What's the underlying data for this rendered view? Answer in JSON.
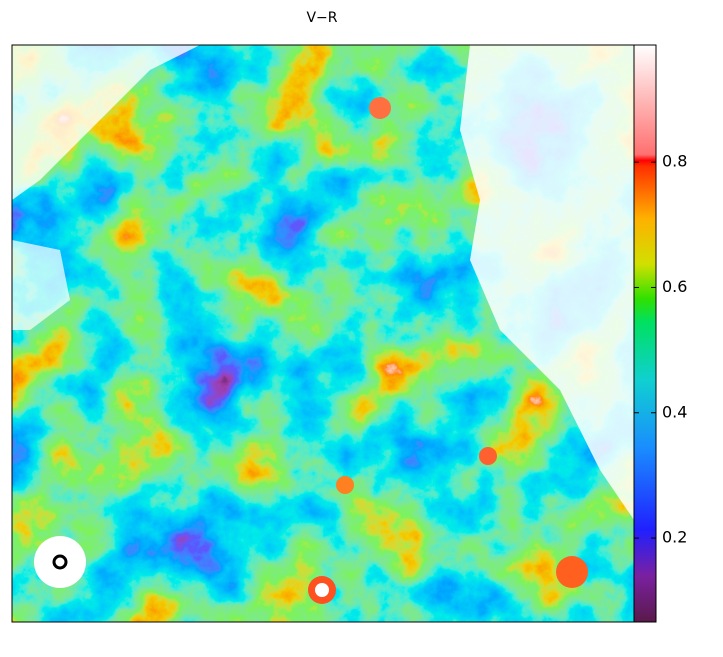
{
  "chart_data": {
    "type": "image",
    "title": "V−R",
    "zlim": [
      0.066,
      0.987
    ],
    "zticks": [
      0.2,
      0.4,
      0.6,
      0.8
    ]
  }
}
